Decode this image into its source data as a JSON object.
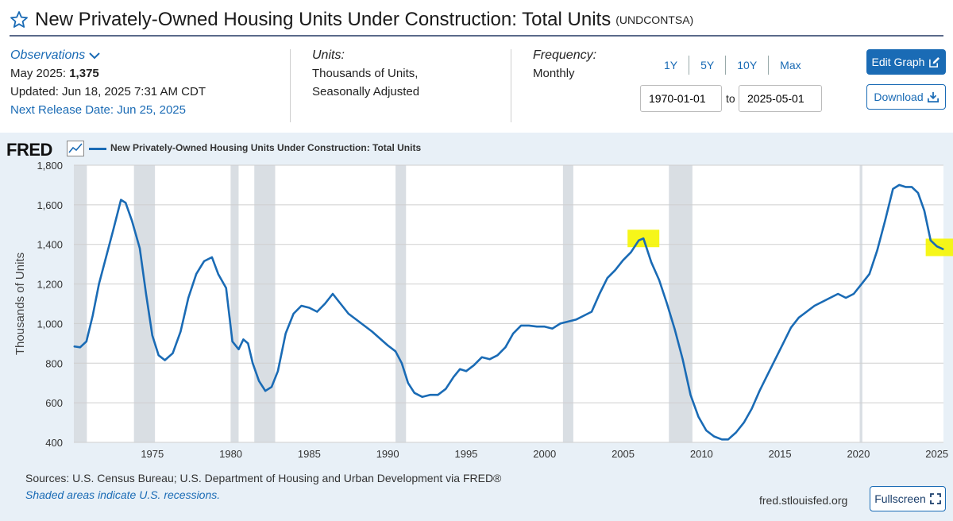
{
  "header": {
    "title": "New Privately-Owned Housing Units Under Construction: Total Units",
    "series_id": "(UNDCONTSA)"
  },
  "observations": {
    "label": "Observations",
    "latest_prefix": "May 2025:",
    "latest_value": "1,375",
    "updated": "Updated: Jun 18, 2025 7:31 AM CDT",
    "next_release": "Next Release Date: Jun 25, 2025"
  },
  "units": {
    "heading": "Units:",
    "line1": "Thousands of Units,",
    "line2": "Seasonally Adjusted"
  },
  "frequency": {
    "heading": "Frequency:",
    "value": "Monthly"
  },
  "range": {
    "buttons": [
      "1Y",
      "5Y",
      "10Y",
      "Max"
    ],
    "start": "1970-01-01",
    "to_label": "to",
    "end": "2025-05-01"
  },
  "actions": {
    "edit_graph": "Edit Graph",
    "download": "Download",
    "fullscreen": "Fullscreen"
  },
  "branding": {
    "logo": "FRED",
    "url": "fred.stlouisfed.org"
  },
  "footer": {
    "sources": "Sources: U.S. Census Bureau; U.S. Department of Housing and Urban Development via FRED®",
    "recession_note": "Shaded areas indicate U.S. recessions."
  },
  "colors": {
    "series": "#1a6bb5",
    "recession": "#d9dee3",
    "highlight": "#f5f500",
    "panel": "#e8f0f7"
  },
  "chart_data": {
    "type": "line",
    "title": "New Privately-Owned Housing Units Under Construction: Total Units",
    "xlabel": "",
    "ylabel": "Thousands of Units",
    "xlim": [
      1970.0,
      2025.42
    ],
    "ylim": [
      400,
      1800
    ],
    "yticks": [
      400,
      600,
      800,
      1000,
      1200,
      1400,
      1600,
      1800
    ],
    "ytick_labels": [
      "400",
      "600",
      "800",
      "1,000",
      "1,200",
      "1,400",
      "1,600",
      "1,800"
    ],
    "xticks": [
      1975,
      1980,
      1985,
      1990,
      1995,
      2000,
      2005,
      2010,
      2015,
      2020,
      2025
    ],
    "grid": true,
    "legend": "top-left",
    "series": [
      {
        "name": "New Privately-Owned Housing Units Under Construction: Total Units",
        "x": [
          1970.0,
          1970.4,
          1970.8,
          1971.2,
          1971.6,
          1972.0,
          1972.5,
          1973.0,
          1973.3,
          1973.7,
          1974.2,
          1974.6,
          1975.0,
          1975.4,
          1975.8,
          1976.3,
          1976.8,
          1977.3,
          1977.8,
          1978.3,
          1978.8,
          1979.2,
          1979.7,
          1980.1,
          1980.5,
          1980.8,
          1981.1,
          1981.4,
          1981.8,
          1982.2,
          1982.6,
          1983.0,
          1983.5,
          1984.0,
          1984.5,
          1985.0,
          1985.5,
          1986.0,
          1986.5,
          1987.0,
          1987.5,
          1988.0,
          1988.5,
          1989.0,
          1989.5,
          1990.0,
          1990.5,
          1990.9,
          1991.3,
          1991.7,
          1992.2,
          1992.7,
          1993.2,
          1993.7,
          1994.2,
          1994.6,
          1995.0,
          1995.5,
          1996.0,
          1996.5,
          1997.0,
          1997.5,
          1998.0,
          1998.5,
          1999.0,
          1999.5,
          2000.0,
          2000.5,
          2001.0,
          2001.5,
          2002.0,
          2002.5,
          2003.0,
          2003.5,
          2004.0,
          2004.5,
          2005.0,
          2005.5,
          2006.0,
          2006.3,
          2006.8,
          2007.3,
          2007.8,
          2008.3,
          2008.8,
          2009.3,
          2009.8,
          2010.3,
          2010.8,
          2011.3,
          2011.7,
          2012.2,
          2012.7,
          2013.2,
          2013.7,
          2014.2,
          2014.7,
          2015.2,
          2015.7,
          2016.2,
          2016.7,
          2017.2,
          2017.7,
          2018.2,
          2018.7,
          2019.2,
          2019.7,
          2020.2,
          2020.7,
          2021.2,
          2021.7,
          2022.2,
          2022.6,
          2023.0,
          2023.4,
          2023.8,
          2024.2,
          2024.6,
          2025.0,
          2025.42
        ],
        "values": [
          885,
          880,
          910,
          1040,
          1200,
          1320,
          1470,
          1625,
          1610,
          1520,
          1380,
          1150,
          940,
          840,
          815,
          850,
          960,
          1130,
          1250,
          1315,
          1335,
          1250,
          1180,
          910,
          870,
          920,
          900,
          800,
          710,
          660,
          680,
          760,
          950,
          1050,
          1090,
          1080,
          1060,
          1100,
          1150,
          1100,
          1050,
          1020,
          990,
          960,
          925,
          890,
          860,
          800,
          700,
          650,
          630,
          640,
          640,
          670,
          730,
          770,
          760,
          790,
          830,
          820,
          840,
          880,
          950,
          990,
          990,
          985,
          985,
          975,
          1000,
          1010,
          1020,
          1040,
          1060,
          1150,
          1230,
          1270,
          1320,
          1360,
          1420,
          1430,
          1310,
          1220,
          1100,
          970,
          820,
          640,
          530,
          460,
          430,
          415,
          415,
          450,
          500,
          570,
          660,
          740,
          820,
          900,
          980,
          1030,
          1060,
          1090,
          1110,
          1130,
          1150,
          1130,
          1150,
          1200,
          1250,
          1370,
          1520,
          1680,
          1700,
          1690,
          1690,
          1660,
          1570,
          1420,
          1390,
          1375
        ]
      }
    ],
    "recessions": [
      [
        1969.92,
        1970.83
      ],
      [
        1973.83,
        1975.17
      ],
      [
        1979.99,
        1980.5
      ],
      [
        1981.5,
        1982.83
      ],
      [
        1990.5,
        1991.17
      ],
      [
        2001.17,
        2001.83
      ],
      [
        2007.92,
        2009.42
      ],
      [
        2020.08,
        2020.25
      ]
    ],
    "highlights": [
      {
        "x": 2006.3,
        "y": 1430
      },
      {
        "x": 2025.3,
        "y": 1385
      }
    ]
  }
}
